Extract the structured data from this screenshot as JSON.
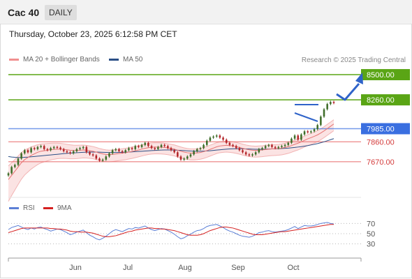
{
  "header": {
    "instrument": "Cac 40",
    "timeframe": "DAILY"
  },
  "timestamp": "Thursday, October 23, 2025 6:12:58 PM CET",
  "legend_main": [
    {
      "label": "MA 20 + Bollinger Bands",
      "color": "#f08f8f"
    },
    {
      "label": "MA 50",
      "color": "#2b4f86"
    }
  ],
  "research_credit": "Research © 2025 Trading Central",
  "legend_rsi": [
    {
      "label": "RSI",
      "color": "#5b7fd6"
    },
    {
      "label": "9MA",
      "color": "#d52020"
    }
  ],
  "colors": {
    "up": "#3f6d2a",
    "down": "#b3262a",
    "pivot": "#3a6fe0",
    "resistance": "#5aa515",
    "support": "#e86a6a"
  },
  "chart_data": [
    {
      "type": "line",
      "panel": "price",
      "x_ticks": [
        "Jun",
        "Jul",
        "Aug",
        "Sep",
        "Oct"
      ],
      "ylim": [
        7350,
        8600
      ],
      "levels": [
        {
          "value": 8500.0,
          "label": "8500.00",
          "kind": "resistance"
        },
        {
          "value": 8260.0,
          "label": "8260.00",
          "kind": "resistance"
        },
        {
          "value": 7985.0,
          "label": "7985.00",
          "kind": "pivot"
        },
        {
          "value": 7860.0,
          "label": "7860.00",
          "kind": "support"
        },
        {
          "value": 7670.0,
          "label": "7670.00",
          "kind": "support"
        }
      ],
      "close": [
        7560,
        7620,
        7640,
        7700,
        7750,
        7780,
        7760,
        7800,
        7790,
        7810,
        7820,
        7790,
        7780,
        7800,
        7810,
        7805,
        7790,
        7770,
        7760,
        7750,
        7770,
        7790,
        7800,
        7810,
        7760,
        7740,
        7730,
        7700,
        7680,
        7690,
        7720,
        7750,
        7780,
        7790,
        7770,
        7760,
        7780,
        7800,
        7790,
        7820,
        7810,
        7830,
        7850,
        7820,
        7800,
        7790,
        7810,
        7830,
        7820,
        7800,
        7780,
        7760,
        7720,
        7690,
        7700,
        7720,
        7740,
        7770,
        7790,
        7800,
        7830,
        7870,
        7900,
        7910,
        7920,
        7900,
        7880,
        7850,
        7830,
        7820,
        7800,
        7780,
        7760,
        7740,
        7730,
        7740,
        7760,
        7790,
        7800,
        7820,
        7830,
        7810,
        7800,
        7810,
        7820,
        7830,
        7850,
        7890,
        7920,
        7880,
        7930,
        7960,
        7950,
        7960,
        7980,
        8020,
        8100,
        8170,
        8220,
        8240,
        8230
      ],
      "ma20": [
        7500,
        7540,
        7580,
        7620,
        7660,
        7690,
        7710,
        7730,
        7745,
        7760,
        7770,
        7775,
        7780,
        7785,
        7788,
        7790,
        7790,
        7788,
        7784,
        7780,
        7778,
        7778,
        7780,
        7782,
        7780,
        7775,
        7770,
        7762,
        7752,
        7745,
        7740,
        7738,
        7740,
        7744,
        7748,
        7752,
        7756,
        7762,
        7768,
        7775,
        7782,
        7790,
        7798,
        7804,
        7808,
        7810,
        7810,
        7809,
        7806,
        7802,
        7796,
        7790,
        7780,
        7770,
        7762,
        7756,
        7752,
        7752,
        7754,
        7758,
        7766,
        7776,
        7788,
        7800,
        7812,
        7820,
        7824,
        7826,
        7824,
        7820,
        7814,
        7806,
        7798,
        7790,
        7784,
        7780,
        7778,
        7780,
        7782,
        7786,
        7790,
        7792,
        7794,
        7796,
        7800,
        7806,
        7814,
        7824,
        7836,
        7846,
        7860,
        7874,
        7888,
        7900,
        7912,
        7926,
        7944,
        7964,
        7986,
        8008,
        8030
      ],
      "ma50": [
        7720,
        7715,
        7712,
        7710,
        7710,
        7712,
        7714,
        7717,
        7720,
        7723,
        7726,
        7729,
        7732,
        7735,
        7738,
        7741,
        7744,
        7747,
        7750,
        7752,
        7754,
        7756,
        7758,
        7760,
        7761,
        7762,
        7762,
        7762,
        7761,
        7760,
        7759,
        7758,
        7758,
        7758,
        7759,
        7760,
        7761,
        7762,
        7764,
        7766,
        7768,
        7770,
        7772,
        7774,
        7776,
        7778,
        7780,
        7781,
        7782,
        7782,
        7782,
        7781,
        7780,
        7778,
        7776,
        7774,
        7772,
        7771,
        7770,
        7770,
        7771,
        7773,
        7775,
        7778,
        7781,
        7784,
        7787,
        7790,
        7792,
        7793,
        7794,
        7794,
        7793,
        7792,
        7791,
        7790,
        7789,
        7789,
        7789,
        7790,
        7791,
        7792,
        7793,
        7794,
        7796,
        7798,
        7800,
        7803,
        7806,
        7810,
        7814,
        7819,
        7824,
        7830,
        7836,
        7843,
        7851,
        7860,
        7870,
        7880,
        7890
      ]
    },
    {
      "type": "line",
      "panel": "rsi",
      "ylim": [
        20,
        80
      ],
      "y_ticks": [
        70,
        50,
        30
      ],
      "series": [
        {
          "name": "RSI",
          "values": [
            58,
            62,
            64,
            66,
            63,
            60,
            58,
            61,
            59,
            62,
            63,
            60,
            58,
            55,
            57,
            59,
            58,
            55,
            52,
            48,
            50,
            53,
            55,
            57,
            52,
            47,
            44,
            40,
            38,
            41,
            45,
            50,
            55,
            58,
            56,
            54,
            57,
            60,
            59,
            62,
            61,
            63,
            65,
            61,
            58,
            56,
            58,
            60,
            59,
            56,
            53,
            49,
            44,
            40,
            42,
            46,
            49,
            53,
            56,
            57,
            60,
            64,
            66,
            67,
            68,
            65,
            62,
            58,
            55,
            53,
            50,
            47,
            45,
            44,
            43,
            45,
            48,
            52,
            53,
            55,
            56,
            54,
            53,
            54,
            55,
            56,
            58,
            61,
            64,
            60,
            63,
            66,
            65,
            65,
            66,
            68,
            70,
            71,
            72,
            70,
            69
          ]
        },
        {
          "name": "9MA",
          "values": [
            52,
            54,
            56,
            58,
            60,
            61,
            61,
            61,
            61,
            61,
            61,
            61,
            61,
            60,
            60,
            59,
            59,
            58,
            57,
            55,
            54,
            54,
            53,
            53,
            53,
            52,
            51,
            49,
            47,
            45,
            44,
            44,
            45,
            46,
            48,
            50,
            52,
            54,
            55,
            57,
            58,
            59,
            60,
            61,
            61,
            60,
            60,
            59,
            59,
            58,
            57,
            56,
            54,
            52,
            50,
            48,
            47,
            47,
            47,
            48,
            50,
            53,
            56,
            58,
            60,
            62,
            63,
            63,
            62,
            61,
            59,
            57,
            55,
            53,
            51,
            49,
            48,
            48,
            48,
            49,
            50,
            51,
            52,
            53,
            54,
            54,
            55,
            56,
            57,
            58,
            59,
            60,
            61,
            62,
            63,
            64,
            65,
            66,
            67,
            68,
            68
          ]
        }
      ]
    }
  ]
}
